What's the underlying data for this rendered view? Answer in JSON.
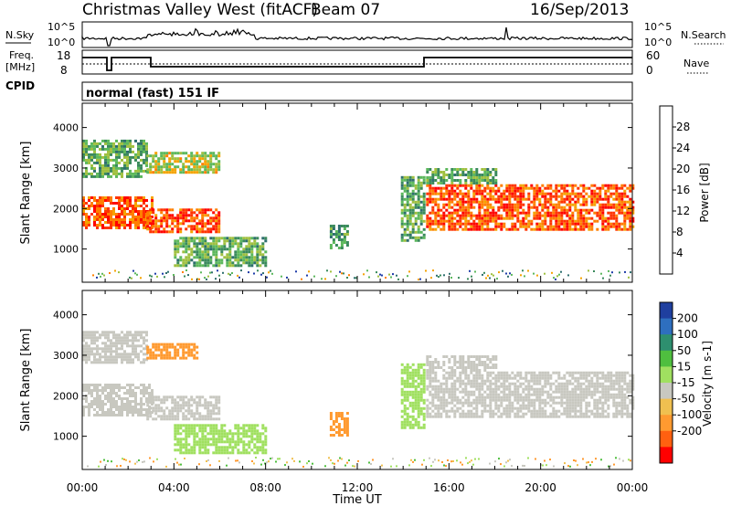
{
  "header": {
    "radar": "Christmas Valley West (fitACF)",
    "beam": "Beam 07",
    "date": "16/Sep/2013"
  },
  "strips": {
    "nsky_label": "N.Sky",
    "nsearch_label": "N.Search",
    "nsky_ticks": [
      "10^5",
      "10^0"
    ],
    "nsearch_ticks": [
      "10^5",
      "10^0"
    ],
    "freq_label_1": "Freq.",
    "freq_label_2": "[MHz]",
    "freq_ticks": [
      "18",
      "8"
    ],
    "nave_label": "Nave",
    "nave_ticks": [
      "60",
      "0"
    ],
    "cpid_label": "CPID",
    "cpid_text": "normal (fast) 151 IF"
  },
  "panels": {
    "power": {
      "ylabel": "Slant Range [km]",
      "cbar_label": "Power [dB]"
    },
    "velocity": {
      "ylabel": "Slant Range [km]",
      "cbar_label": "Velocity [m s-1]"
    }
  },
  "chart_data": [
    {
      "type": "heatmap",
      "title": "",
      "xlabel": "Time UT",
      "ylabel": "Slant Range [km]",
      "x_ticks": [
        "00:00",
        "04:00",
        "08:00",
        "12:00",
        "16:00",
        "20:00",
        "00:00"
      ],
      "xlim_hours": [
        0,
        24
      ],
      "y_ticks": [
        1000,
        2000,
        3000,
        4000
      ],
      "ylim": [
        180,
        4600
      ],
      "colorbar": {
        "label": "Power [dB]",
        "ticks": [
          4,
          8,
          12,
          16,
          20,
          24,
          28
        ],
        "range": [
          0,
          32
        ],
        "colors": [
          "#0000ff",
          "#1e3ca8",
          "#2e6e6e",
          "#3a8a5c",
          "#5cb85c",
          "#a0c040",
          "#f5a300",
          "#ff7f00",
          "#ff3300",
          "#ff0000"
        ]
      },
      "echo_regions": [
        {
          "t_start": 0.0,
          "t_end": 3.0,
          "range_start": 1500,
          "range_end": 2300,
          "power": 26
        },
        {
          "t_start": 0.0,
          "t_end": 2.8,
          "range_start": 2800,
          "range_end": 3700,
          "power": 14
        },
        {
          "t_start": 2.8,
          "t_end": 6.0,
          "range_start": 1400,
          "range_end": 2000,
          "power": 26
        },
        {
          "t_start": 2.8,
          "t_end": 6.0,
          "range_start": 2900,
          "range_end": 3400,
          "power": 18
        },
        {
          "t_start": 4.0,
          "t_end": 8.0,
          "range_start": 600,
          "range_end": 1300,
          "power": 14
        },
        {
          "t_start": 10.8,
          "t_end": 11.6,
          "range_start": 1000,
          "range_end": 1600,
          "power": 12
        },
        {
          "t_start": 13.9,
          "t_end": 14.9,
          "range_start": 1200,
          "range_end": 2800,
          "power": 14
        },
        {
          "t_start": 15.0,
          "t_end": 24.0,
          "range_start": 1500,
          "range_end": 2600,
          "power": 26
        },
        {
          "t_start": 15.0,
          "t_end": 18.0,
          "range_start": 2600,
          "range_end": 3000,
          "power": 14
        }
      ]
    },
    {
      "type": "heatmap",
      "title": "",
      "xlabel": "Time UT",
      "ylabel": "Slant Range [km]",
      "x_ticks": [
        "00:00",
        "04:00",
        "08:00",
        "12:00",
        "16:00",
        "20:00",
        "00:00"
      ],
      "xlim_hours": [
        0,
        24
      ],
      "y_ticks": [
        1000,
        2000,
        3000,
        4000
      ],
      "ylim": [
        180,
        4600
      ],
      "colorbar": {
        "label": "Velocity [m s-1]",
        "ticks": [
          200,
          100,
          50,
          15,
          -15,
          -50,
          -100,
          -200
        ],
        "colors": [
          "#1f3f9f",
          "#2e6fbf",
          "#2e8f6f",
          "#4fbf3f",
          "#a0e060",
          "#c8c8c0",
          "#f0c050",
          "#ff9a30",
          "#ff6010",
          "#ff0000"
        ]
      },
      "echo_regions": [
        {
          "t_start": 0.0,
          "t_end": 3.0,
          "range_start": 1500,
          "range_end": 2300,
          "velocity": 0
        },
        {
          "t_start": 0.0,
          "t_end": 2.8,
          "range_start": 2800,
          "range_end": 3600,
          "velocity": 0
        },
        {
          "t_start": 2.8,
          "t_end": 6.0,
          "range_start": 1400,
          "range_end": 2000,
          "velocity": 0
        },
        {
          "t_start": 2.8,
          "t_end": 5.0,
          "range_start": 2900,
          "range_end": 3300,
          "velocity": -60
        },
        {
          "t_start": 4.0,
          "t_end": 8.0,
          "range_start": 600,
          "range_end": 1300,
          "velocity": 30
        },
        {
          "t_start": 10.8,
          "t_end": 11.6,
          "range_start": 1000,
          "range_end": 1600,
          "velocity": -80
        },
        {
          "t_start": 13.9,
          "t_end": 14.9,
          "range_start": 1200,
          "range_end": 2800,
          "velocity": 40
        },
        {
          "t_start": 15.0,
          "t_end": 24.0,
          "range_start": 1500,
          "range_end": 2600,
          "velocity": 0
        },
        {
          "t_start": 15.0,
          "t_end": 18.0,
          "range_start": 2600,
          "range_end": 3000,
          "velocity": 0
        }
      ]
    }
  ]
}
